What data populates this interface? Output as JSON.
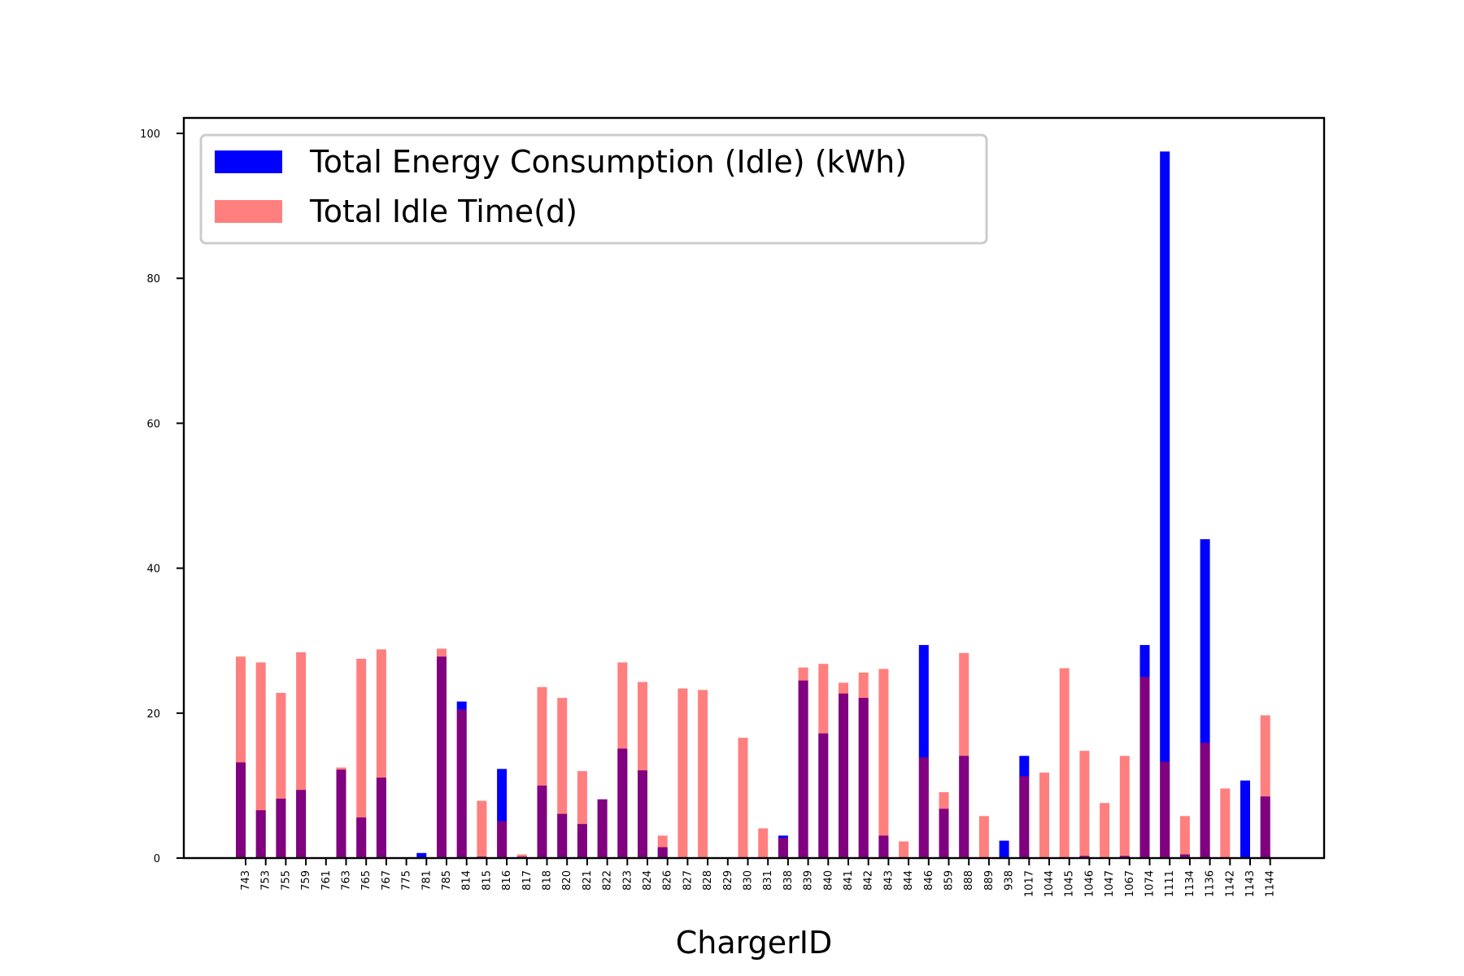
{
  "chart_data": {
    "type": "bar",
    "title": "",
    "xlabel": "ChargerID",
    "ylabel": "",
    "ylim": [
      0,
      102
    ],
    "yticks": [
      0,
      20,
      40,
      60,
      80,
      100
    ],
    "grid": false,
    "legend_position": "top-left",
    "categories": [
      "743",
      "753",
      "755",
      "759",
      "761",
      "763",
      "765",
      "767",
      "775",
      "781",
      "785",
      "814",
      "815",
      "816",
      "817",
      "818",
      "820",
      "821",
      "822",
      "823",
      "824",
      "826",
      "827",
      "828",
      "829",
      "830",
      "831",
      "838",
      "839",
      "840",
      "841",
      "842",
      "843",
      "844",
      "846",
      "859",
      "888",
      "889",
      "938",
      "1017",
      "1044",
      "1045",
      "1046",
      "1047",
      "1067",
      "1074",
      "1111",
      "1134",
      "1136",
      "1142",
      "1143",
      "1144"
    ],
    "series": [
      {
        "name": "Total Energy Consumption (Idle) (kWh)",
        "color": "#0000ff",
        "values": [
          13.2,
          6.6,
          8.2,
          9.4,
          0,
          12.2,
          5.6,
          11.1,
          0,
          0.7,
          27.8,
          21.6,
          0.2,
          12.3,
          0.2,
          10,
          6.1,
          4.7,
          8.1,
          15.1,
          12.1,
          1.5,
          0,
          0,
          0,
          0,
          0,
          3.1,
          24.5,
          17.2,
          22.7,
          22.1,
          3.1,
          0,
          29.4,
          6.8,
          14.1,
          0,
          2.4,
          14.1,
          0,
          0,
          0.3,
          0,
          0.3,
          29.4,
          97.5,
          0.5,
          44,
          0,
          10.7,
          8.5
        ]
      },
      {
        "name": "Total Idle Time(d)",
        "color": "#ff0000",
        "alpha": 0.5,
        "values": [
          27.8,
          27,
          22.8,
          28.4,
          0,
          12.5,
          27.5,
          28.8,
          0,
          0,
          28.9,
          20.5,
          7.9,
          5.1,
          0.5,
          23.6,
          22.1,
          12,
          8.1,
          27,
          24.3,
          3.1,
          23.4,
          23.2,
          0,
          16.6,
          4.1,
          2.8,
          26.3,
          26.8,
          24.2,
          25.6,
          26.1,
          2.3,
          13.9,
          9.1,
          28.3,
          5.8,
          0,
          11.3,
          11.8,
          26.2,
          14.8,
          7.6,
          14.1,
          25,
          13.3,
          5.8,
          15.9,
          9.6,
          0,
          19.7
        ]
      }
    ]
  }
}
